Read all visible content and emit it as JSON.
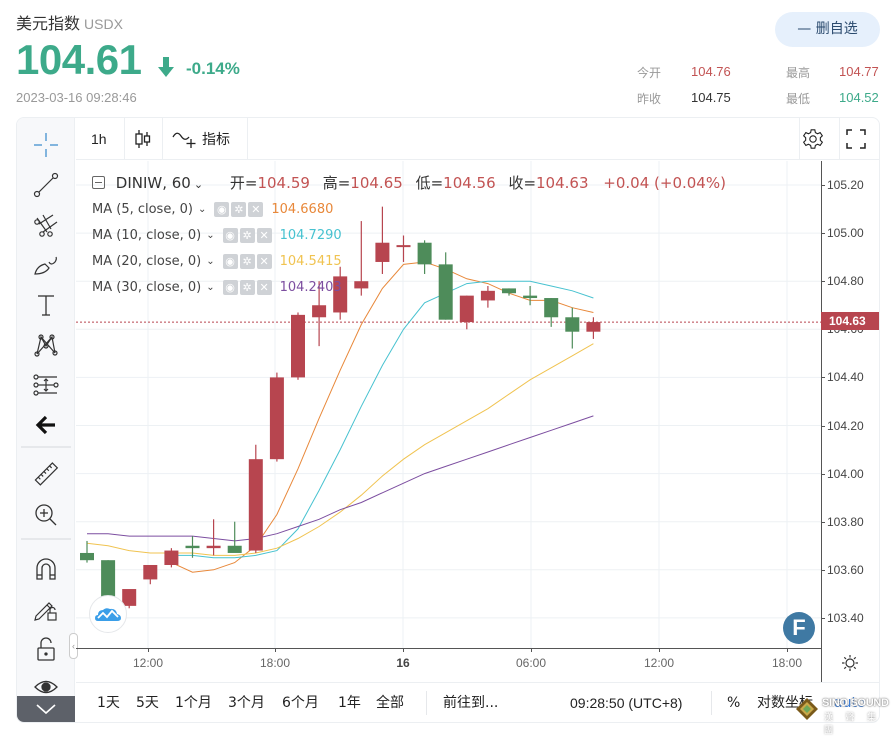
{
  "header": {
    "name": "美元指数",
    "code": "USDX",
    "price": "104.61",
    "change_pct": "-0.14%",
    "timestamp": "2023-03-16 09:28:46",
    "watchlist_button": "— 删自选",
    "stats": {
      "open_label": "今开",
      "open_value": "104.76",
      "high_label": "最高",
      "high_value": "104.77",
      "prev_close_label": "昨收",
      "prev_close_value": "104.75",
      "low_label": "最低",
      "low_value": "104.52"
    },
    "colors": {
      "down": "#3daa8a",
      "up": "#c25353"
    }
  },
  "toolbar": {
    "interval": "1h",
    "indicators_label": "指标"
  },
  "legend": {
    "symbol": "DINIW, 60",
    "open_label": "开=",
    "open": "104.59",
    "high_label": "高=",
    "high": "104.65",
    "low_label": "低=",
    "low": "104.56",
    "close_label": "收=",
    "close": "104.63",
    "change": "+0.04 (+0.04%)",
    "ma": [
      {
        "label": "MA (5, close, 0)",
        "value": "104.6680",
        "color": "#e8883a"
      },
      {
        "label": "MA (10, close, 0)",
        "value": "104.7290",
        "color": "#47c2d0"
      },
      {
        "label": "MA (20, close, 0)",
        "value": "104.5415",
        "color": "#f0c350"
      },
      {
        "label": "MA (30, close, 0)",
        "value": "104.2403",
        "color": "#7c4ea0"
      }
    ]
  },
  "price_axis": {
    "labels": [
      "105.20",
      "105.00",
      "104.80",
      "104.60",
      "104.40",
      "104.20",
      "104.00",
      "103.80",
      "103.60",
      "103.40"
    ],
    "current_price_tag": "104.63"
  },
  "time_axis": {
    "labels": [
      "12:00",
      "18:00",
      "16",
      "06:00",
      "12:00",
      "18:00"
    ]
  },
  "bottom_bar": {
    "ranges": [
      "1天",
      "5天",
      "1个月",
      "3个月",
      "6个月",
      "1年",
      "全部"
    ],
    "goto": "前往到...",
    "clock": "09:28:50 (UTC+8)",
    "percent": "%",
    "log_scale": "对数坐标",
    "auto": "auto"
  },
  "watermark": {
    "line1": "SINO SOUND",
    "line2": "漢 聲 集 團"
  },
  "chart_data": {
    "type": "candlestick",
    "title": "DINIW, 60",
    "xlabel": "",
    "ylabel": "",
    "ylim": [
      103.28,
      105.3
    ],
    "grid": true,
    "x_tick_labels": [
      "12:00",
      "18:00",
      "16",
      "06:00",
      "12:00",
      "18:00"
    ],
    "y_tick_labels": [
      "103.40",
      "103.60",
      "103.80",
      "104.00",
      "104.20",
      "104.40",
      "104.60",
      "104.80",
      "105.00",
      "105.20"
    ],
    "candles": [
      {
        "o": 103.67,
        "h": 103.72,
        "l": 103.63,
        "c": 103.64
      },
      {
        "o": 103.64,
        "h": 103.64,
        "l": 103.41,
        "c": 103.44
      },
      {
        "o": 103.45,
        "h": 103.51,
        "l": 103.44,
        "c": 103.52
      },
      {
        "o": 103.56,
        "h": 103.62,
        "l": 103.54,
        "c": 103.62
      },
      {
        "o": 103.62,
        "h": 103.69,
        "l": 103.61,
        "c": 103.68
      },
      {
        "o": 103.7,
        "h": 103.74,
        "l": 103.65,
        "c": 103.69
      },
      {
        "o": 103.69,
        "h": 103.81,
        "l": 103.66,
        "c": 103.7
      },
      {
        "o": 103.7,
        "h": 103.8,
        "l": 103.68,
        "c": 103.67
      },
      {
        "o": 103.68,
        "h": 104.12,
        "l": 103.67,
        "c": 104.06
      },
      {
        "o": 104.06,
        "h": 104.42,
        "l": 104.05,
        "c": 104.4
      },
      {
        "o": 104.4,
        "h": 104.67,
        "l": 104.39,
        "c": 104.66
      },
      {
        "o": 104.65,
        "h": 104.8,
        "l": 104.53,
        "c": 104.7
      },
      {
        "o": 104.67,
        "h": 104.86,
        "l": 104.64,
        "c": 104.82
      },
      {
        "o": 104.77,
        "h": 105.05,
        "l": 104.74,
        "c": 104.8
      },
      {
        "o": 104.88,
        "h": 105.11,
        "l": 104.83,
        "c": 104.96
      },
      {
        "o": 104.95,
        "h": 104.99,
        "l": 104.88,
        "c": 104.95
      },
      {
        "o": 104.96,
        "h": 104.97,
        "l": 104.83,
        "c": 104.87
      },
      {
        "o": 104.87,
        "h": 104.92,
        "l": 104.64,
        "c": 104.64
      },
      {
        "o": 104.63,
        "h": 104.74,
        "l": 104.6,
        "c": 104.74
      },
      {
        "o": 104.72,
        "h": 104.78,
        "l": 104.69,
        "c": 104.76
      },
      {
        "o": 104.77,
        "h": 104.77,
        "l": 104.74,
        "c": 104.75
      },
      {
        "o": 104.74,
        "h": 104.78,
        "l": 104.7,
        "c": 104.73
      },
      {
        "o": 104.73,
        "h": 104.73,
        "l": 104.61,
        "c": 104.65
      },
      {
        "o": 104.65,
        "h": 104.69,
        "l": 104.52,
        "c": 104.59
      },
      {
        "o": 104.59,
        "h": 104.65,
        "l": 104.56,
        "c": 104.63
      }
    ],
    "series": [
      {
        "name": "MA5",
        "color": "#e8883a",
        "values": [
          null,
          null,
          null,
          null,
          103.63,
          103.59,
          103.6,
          103.63,
          103.7,
          103.83,
          104.02,
          104.23,
          104.43,
          104.62,
          104.77,
          104.87,
          104.88,
          104.85,
          104.81,
          104.79,
          104.75,
          104.72,
          104.72,
          104.69,
          104.67
        ]
      },
      {
        "name": "MA10",
        "color": "#47c2d0",
        "values": [
          null,
          null,
          null,
          null,
          103.66,
          103.66,
          103.65,
          103.65,
          103.66,
          103.68,
          103.77,
          103.93,
          104.1,
          104.28,
          104.45,
          104.6,
          104.71,
          104.75,
          104.79,
          104.8,
          104.8,
          104.8,
          104.78,
          104.76,
          104.73
        ]
      },
      {
        "name": "MA20",
        "color": "#f0c350",
        "values": [
          103.71,
          103.7,
          103.68,
          103.67,
          103.67,
          103.67,
          103.66,
          103.66,
          103.67,
          103.69,
          103.73,
          103.78,
          103.84,
          103.91,
          103.99,
          104.06,
          104.12,
          104.17,
          104.22,
          104.27,
          104.33,
          104.39,
          104.44,
          104.49,
          104.54
        ]
      },
      {
        "name": "MA30",
        "color": "#7c4ea0",
        "values": [
          103.75,
          103.75,
          103.74,
          103.74,
          103.74,
          103.74,
          103.73,
          103.72,
          103.73,
          103.75,
          103.78,
          103.81,
          103.85,
          103.88,
          103.92,
          103.96,
          104.0,
          104.03,
          104.06,
          104.09,
          104.12,
          104.15,
          104.18,
          104.21,
          104.24
        ]
      }
    ],
    "current_price_line": 104.63
  }
}
